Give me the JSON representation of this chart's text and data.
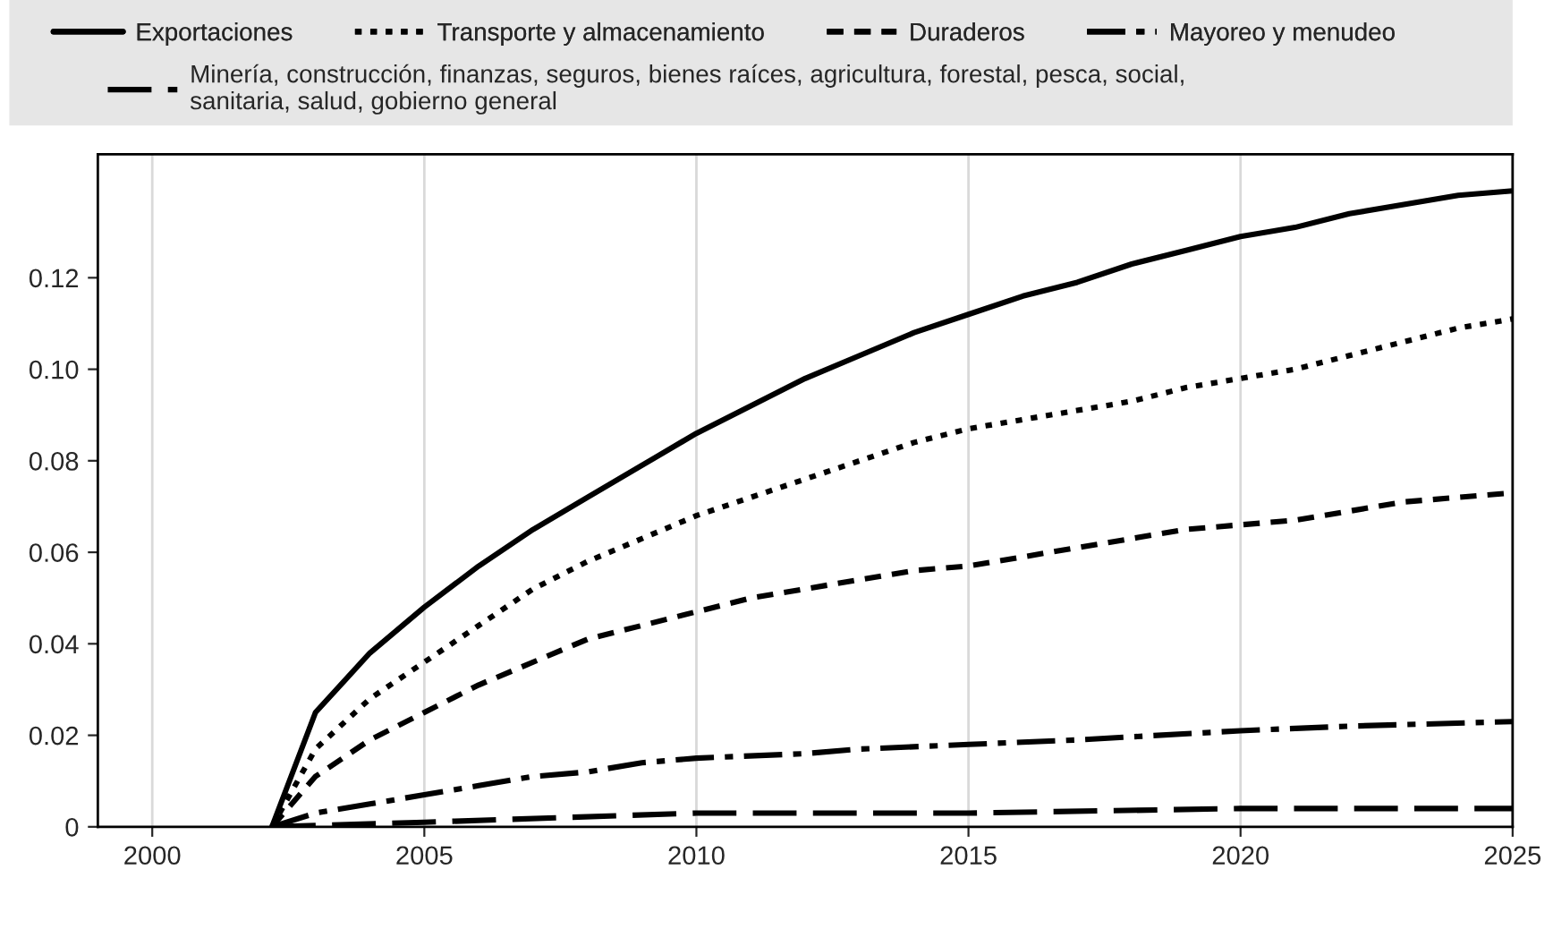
{
  "chart_data": {
    "type": "line",
    "xlim": [
      1999,
      2025
    ],
    "xticks": [
      2000,
      2005,
      2010,
      2015,
      2020,
      2025
    ],
    "ylim": [
      0,
      0.147
    ],
    "yticks": [
      0,
      0.02,
      0.04,
      0.06,
      0.08,
      {
        "value": 0.1,
        "label": "0.10"
      },
      0.12
    ],
    "grid": "x",
    "legend": "top",
    "marker": "none",
    "series": [
      {
        "name": "Exportaciones",
        "color": "#000000",
        "line_style": "solid",
        "x": [
          2002.2,
          2003,
          2004,
          2005,
          2006,
          2007,
          2008,
          2009,
          2010,
          2011,
          2012,
          2013,
          2014,
          2015,
          2016,
          2017,
          2018,
          2019,
          2020,
          2021,
          2022,
          2023,
          2024,
          2025
        ],
        "values": [
          0,
          0.025,
          0.038,
          0.048,
          0.057,
          0.065,
          0.072,
          0.079,
          0.086,
          0.092,
          0.098,
          0.103,
          0.108,
          0.112,
          0.116,
          0.119,
          0.123,
          0.126,
          0.129,
          0.131,
          0.134,
          0.136,
          0.138,
          0.139
        ]
      },
      {
        "name": "Transporte y almacenamiento",
        "color": "#000000",
        "line_style": "dotted",
        "x": [
          2002.2,
          2003,
          2004,
          2005,
          2006,
          2007,
          2008,
          2009,
          2010,
          2011,
          2012,
          2013,
          2014,
          2015,
          2016,
          2017,
          2018,
          2019,
          2020,
          2021,
          2022,
          2023,
          2024,
          2025
        ],
        "values": [
          0,
          0.017,
          0.028,
          0.036,
          0.044,
          0.052,
          0.058,
          0.063,
          0.068,
          0.072,
          0.076,
          0.08,
          0.084,
          0.087,
          0.089,
          0.091,
          0.093,
          0.096,
          0.098,
          0.1,
          0.103,
          0.106,
          0.109,
          0.111
        ]
      },
      {
        "name": "Duraderos",
        "color": "#000000",
        "line_style": "dashed",
        "x": [
          2002.2,
          2003,
          2004,
          2005,
          2006,
          2007,
          2008,
          2009,
          2010,
          2011,
          2012,
          2013,
          2014,
          2015,
          2016,
          2017,
          2018,
          2019,
          2020,
          2021,
          2022,
          2023,
          2024,
          2025
        ],
        "values": [
          0,
          0.011,
          0.019,
          0.025,
          0.031,
          0.036,
          0.041,
          0.044,
          0.047,
          0.05,
          0.052,
          0.054,
          0.056,
          0.057,
          0.059,
          0.061,
          0.063,
          0.065,
          0.066,
          0.067,
          0.069,
          0.071,
          0.072,
          0.073
        ]
      },
      {
        "name": "Mayoreo y menudeo",
        "color": "#000000",
        "line_style": "dashdot",
        "x": [
          2002.2,
          2003,
          2004,
          2005,
          2006,
          2007,
          2008,
          2009,
          2010,
          2012,
          2013,
          2015,
          2017,
          2020,
          2022,
          2025
        ],
        "values": [
          0,
          0.003,
          0.005,
          0.007,
          0.009,
          0.011,
          0.012,
          0.014,
          0.015,
          0.016,
          0.017,
          0.018,
          0.019,
          0.021,
          0.022,
          0.023
        ]
      },
      {
        "name": "Minería, construcción, finanzas, seguros, bienes raíces, agricultura, forestal, pesca, social, sanitaria, salud, gobierno general",
        "color": "#000000",
        "line_style": "longdash",
        "x": [
          2002.2,
          2005,
          2010,
          2015,
          2020,
          2025
        ],
        "values": [
          0,
          0.001,
          0.003,
          0.003,
          0.004,
          0.004
        ]
      }
    ]
  }
}
